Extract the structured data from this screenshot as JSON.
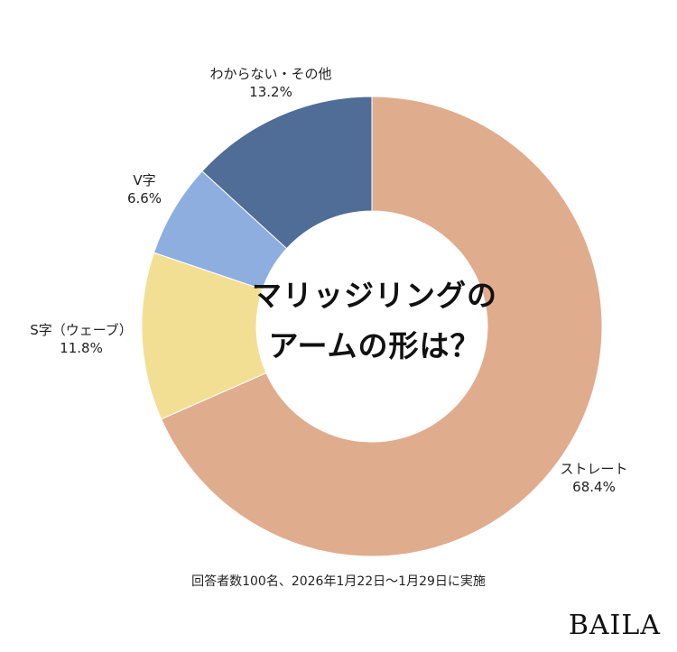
{
  "chart_data": {
    "type": "pie",
    "title_lines": [
      "マリッジリングの",
      "アームの形は？"
    ],
    "slices": [
      {
        "label": "ストレート",
        "value": 68.4,
        "value_text": "68.4%",
        "color": "#e0ac8e"
      },
      {
        "label": "S字（ウェーブ）",
        "value": 11.8,
        "value_text": "11.8%",
        "color": "#f2df93"
      },
      {
        "label": "V字",
        "value": 6.6,
        "value_text": "6.6%",
        "color": "#8eaee0"
      },
      {
        "label": "わからない・その他",
        "value": 13.2,
        "value_text": "13.2%",
        "color": "#4f6d96"
      }
    ]
  },
  "footnote": "回答者数100名、2026年1月22日〜1月29日に実施",
  "brand": "BAILA"
}
